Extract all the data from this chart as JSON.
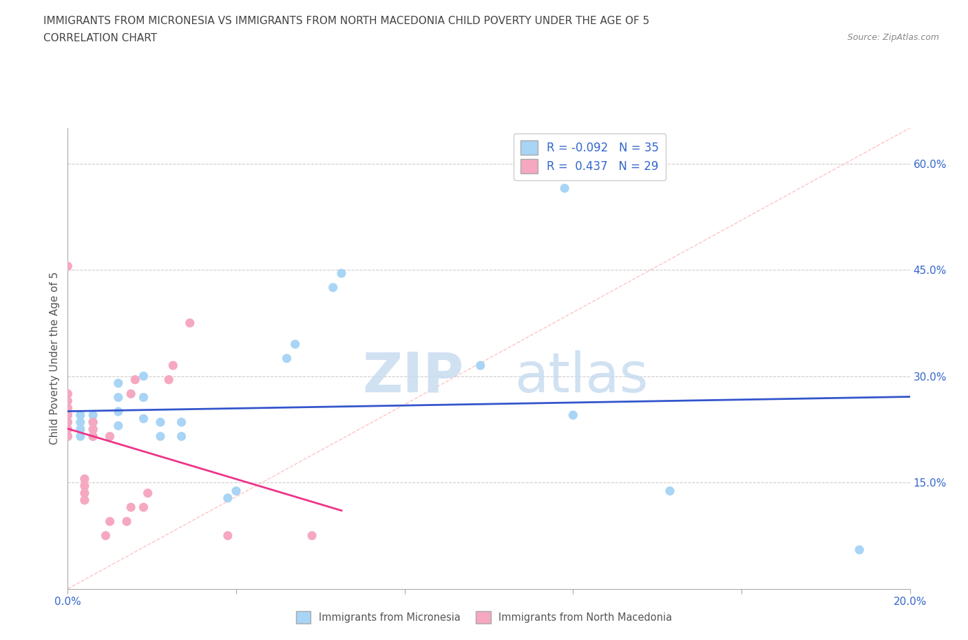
{
  "title_line1": "IMMIGRANTS FROM MICRONESIA VS IMMIGRANTS FROM NORTH MACEDONIA CHILD POVERTY UNDER THE AGE OF 5",
  "title_line2": "CORRELATION CHART",
  "source_text": "Source: ZipAtlas.com",
  "ylabel": "Child Poverty Under the Age of 5",
  "xlim": [
    0.0,
    0.2
  ],
  "ylim": [
    0.0,
    0.65
  ],
  "color_micronesia": "#A8D4F5",
  "color_n_macedonia": "#F5A8C0",
  "trend_color_micronesia": "#3355CC",
  "trend_color_n_macedonia": "#EE3388",
  "watermark_zip": "ZIP",
  "watermark_atlas": "atlas",
  "scatter_micronesia": [
    [
      0.0,
      0.215
    ],
    [
      0.0,
      0.225
    ],
    [
      0.0,
      0.235
    ],
    [
      0.0,
      0.245
    ],
    [
      0.0,
      0.255
    ],
    [
      0.003,
      0.215
    ],
    [
      0.003,
      0.225
    ],
    [
      0.003,
      0.235
    ],
    [
      0.003,
      0.245
    ],
    [
      0.006,
      0.215
    ],
    [
      0.006,
      0.225
    ],
    [
      0.006,
      0.235
    ],
    [
      0.006,
      0.245
    ],
    [
      0.012,
      0.23
    ],
    [
      0.012,
      0.25
    ],
    [
      0.012,
      0.27
    ],
    [
      0.012,
      0.29
    ],
    [
      0.018,
      0.24
    ],
    [
      0.018,
      0.27
    ],
    [
      0.018,
      0.3
    ],
    [
      0.022,
      0.215
    ],
    [
      0.022,
      0.235
    ],
    [
      0.027,
      0.215
    ],
    [
      0.027,
      0.235
    ],
    [
      0.038,
      0.128
    ],
    [
      0.04,
      0.138
    ],
    [
      0.052,
      0.325
    ],
    [
      0.054,
      0.345
    ],
    [
      0.063,
      0.425
    ],
    [
      0.065,
      0.445
    ],
    [
      0.098,
      0.315
    ],
    [
      0.118,
      0.565
    ],
    [
      0.12,
      0.245
    ],
    [
      0.143,
      0.138
    ],
    [
      0.188,
      0.055
    ]
  ],
  "scatter_n_macedonia": [
    [
      0.0,
      0.215
    ],
    [
      0.0,
      0.225
    ],
    [
      0.0,
      0.235
    ],
    [
      0.0,
      0.245
    ],
    [
      0.0,
      0.255
    ],
    [
      0.0,
      0.265
    ],
    [
      0.0,
      0.275
    ],
    [
      0.004,
      0.125
    ],
    [
      0.004,
      0.135
    ],
    [
      0.004,
      0.145
    ],
    [
      0.004,
      0.155
    ],
    [
      0.006,
      0.215
    ],
    [
      0.006,
      0.225
    ],
    [
      0.006,
      0.235
    ],
    [
      0.009,
      0.075
    ],
    [
      0.01,
      0.095
    ],
    [
      0.01,
      0.215
    ],
    [
      0.014,
      0.095
    ],
    [
      0.015,
      0.115
    ],
    [
      0.015,
      0.275
    ],
    [
      0.016,
      0.295
    ],
    [
      0.018,
      0.115
    ],
    [
      0.019,
      0.135
    ],
    [
      0.024,
      0.295
    ],
    [
      0.025,
      0.315
    ],
    [
      0.029,
      0.375
    ],
    [
      0.038,
      0.075
    ],
    [
      0.058,
      0.075
    ],
    [
      0.0,
      0.455
    ]
  ]
}
